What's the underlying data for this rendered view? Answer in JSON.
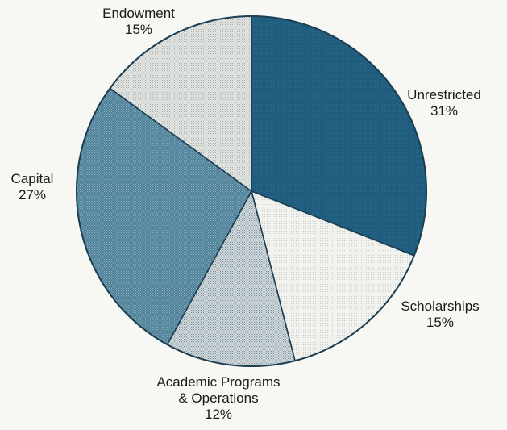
{
  "chart_data": {
    "type": "pie",
    "start_angle_deg": 0,
    "direction": "clockwise",
    "slices": [
      {
        "label": "Unrestricted",
        "value": 31,
        "value_label": "31%",
        "color": "#1f5c7d",
        "pattern": "dense"
      },
      {
        "label": "Scholarships",
        "value": 15,
        "value_label": "15%",
        "color": "#eeeeea",
        "pattern": "light"
      },
      {
        "label": "Academic Programs & Operations",
        "label_lines": [
          "Academic Programs",
          "& Operations"
        ],
        "value": 12,
        "value_label": "12%",
        "color": "#b4bcc1",
        "pattern": "medium"
      },
      {
        "label": "Capital",
        "value": 27,
        "value_label": "27%",
        "color": "#5a8aa2",
        "pattern": "medium-dark"
      },
      {
        "label": "Endowment",
        "value": 15,
        "value_label": "15%",
        "color": "#dadcd8",
        "pattern": "light-medium"
      }
    ]
  }
}
